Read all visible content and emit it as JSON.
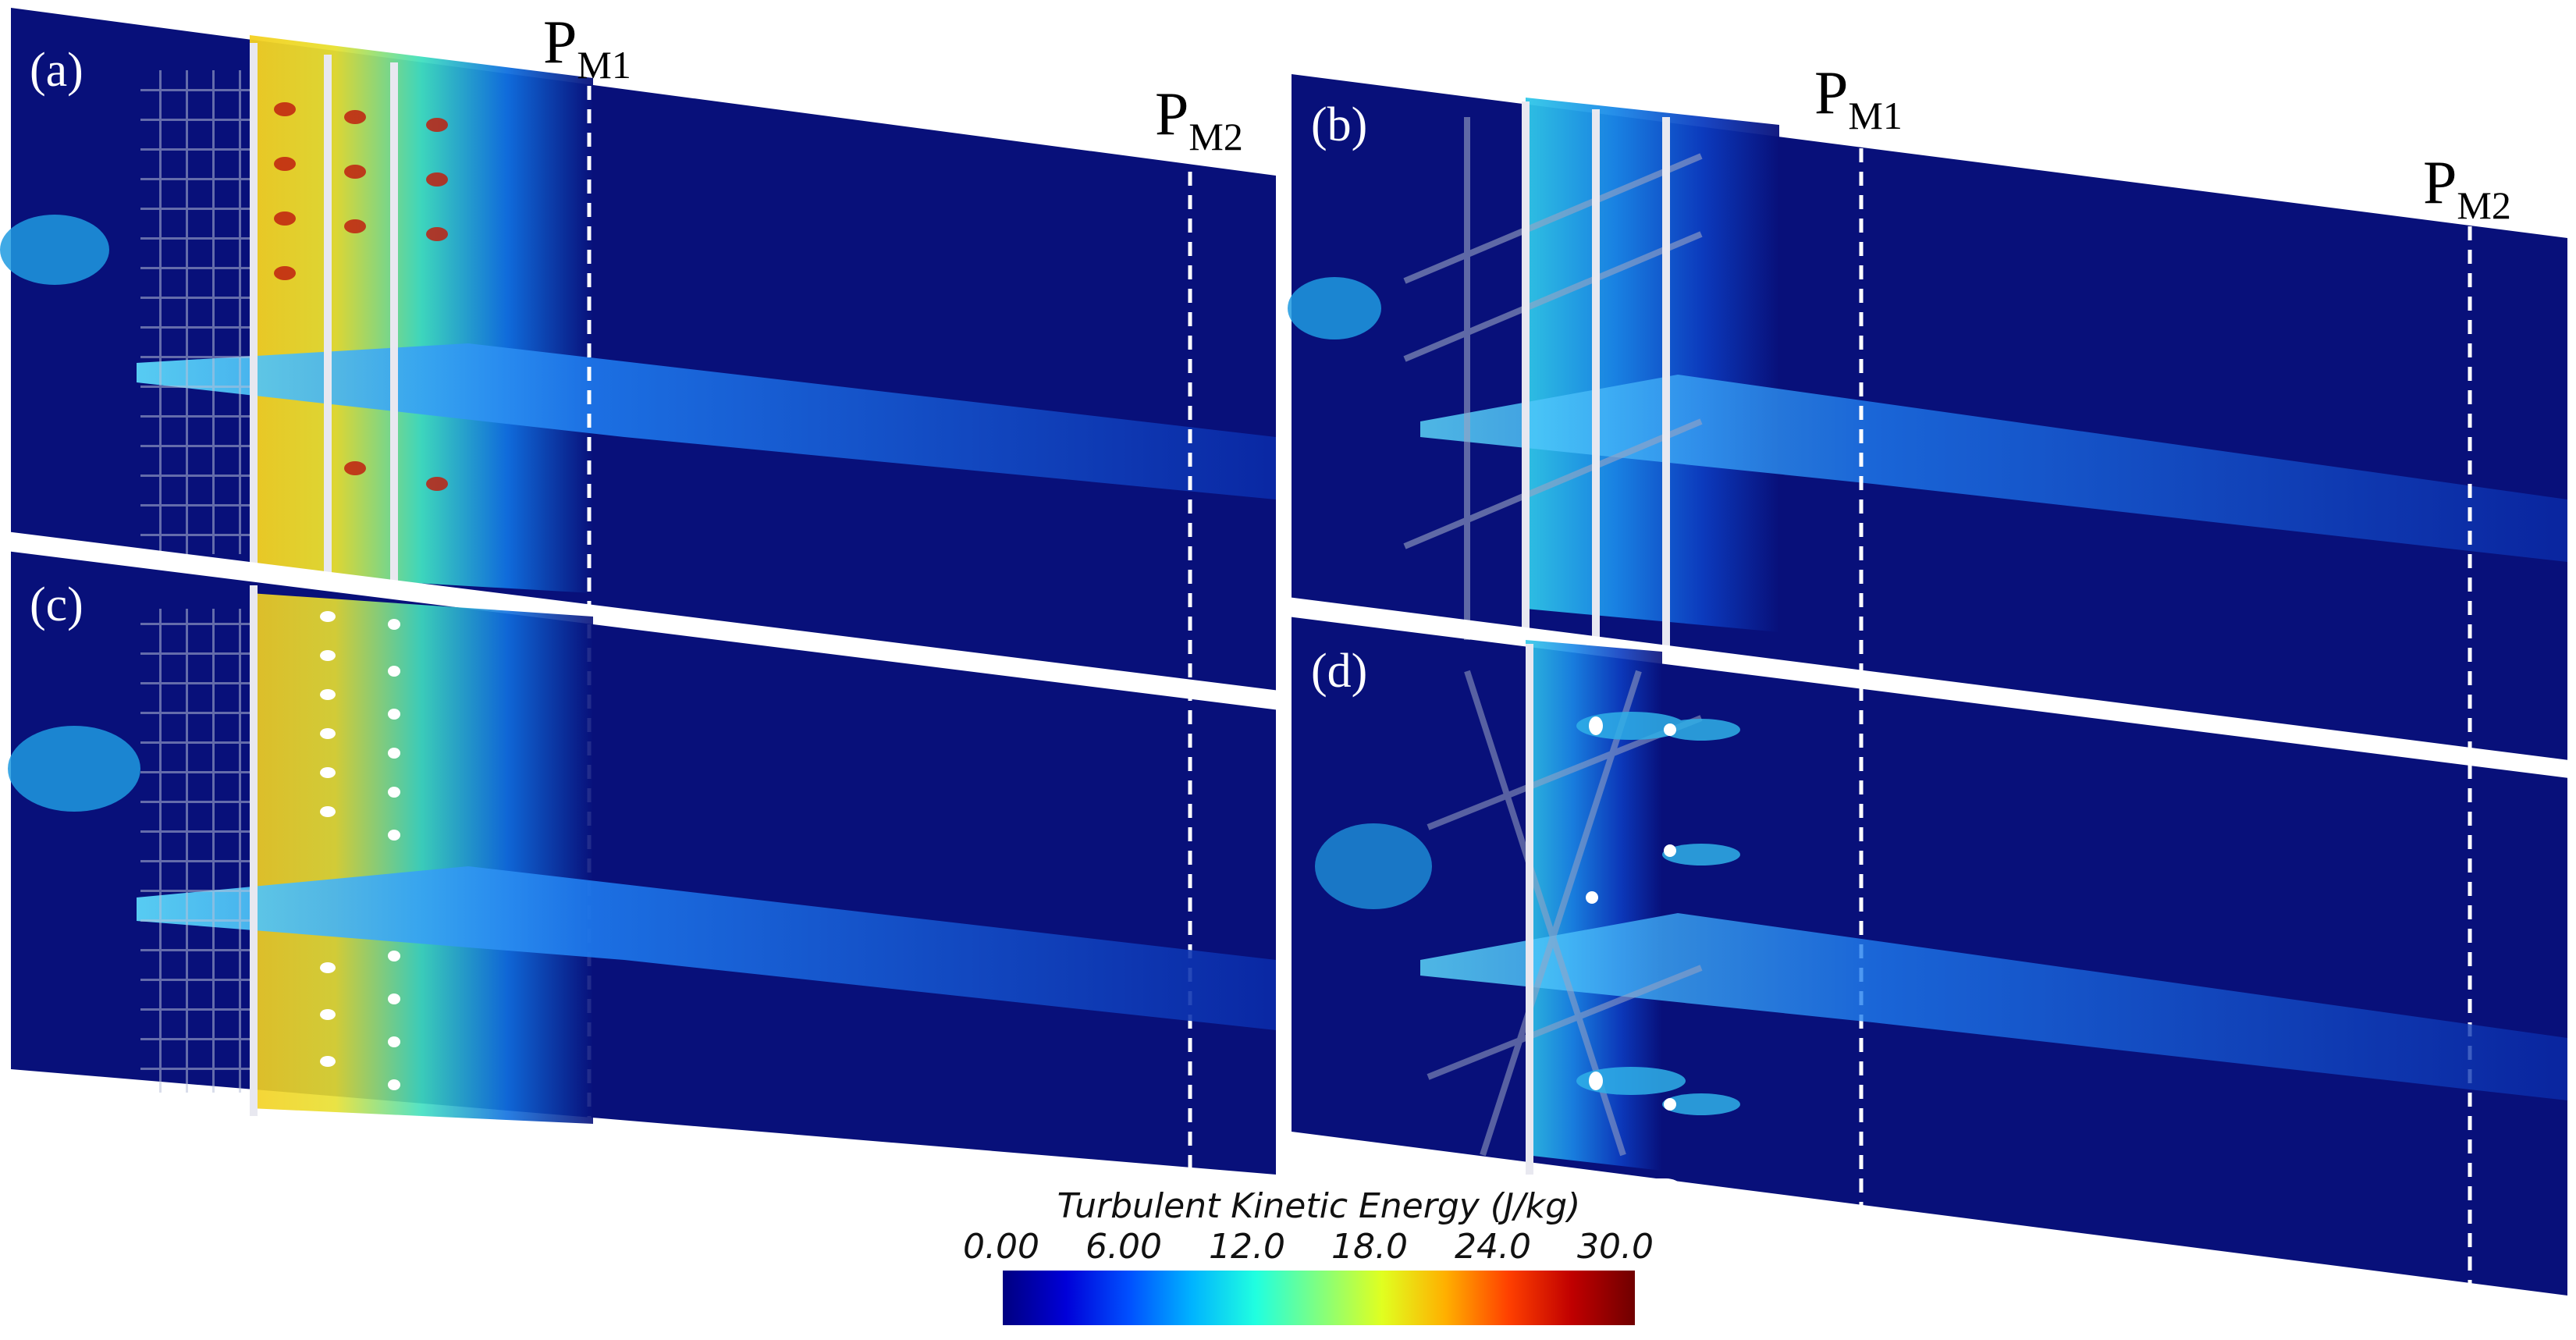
{
  "panels": [
    {
      "id": "a",
      "label": "(a)",
      "pm1": "P",
      "pm1_sub": "M1",
      "pm2": "P",
      "pm2_sub": "M2"
    },
    {
      "id": "b",
      "label": "(b)",
      "pm1": "P",
      "pm1_sub": "M1",
      "pm2": "P",
      "pm2_sub": "M2"
    },
    {
      "id": "c",
      "label": "(c)"
    },
    {
      "id": "d",
      "label": "(d)"
    }
  ],
  "colorbar": {
    "title": "Turbulent Kinetic Energy (J/kg)",
    "ticks": [
      "0.00",
      "6.00",
      "12.0",
      "18.0",
      "24.0",
      "30.0"
    ],
    "range": [
      0,
      30
    ],
    "colors": [
      "#000080",
      "#0000d8",
      "#0050ff",
      "#00b4ff",
      "#20ffe0",
      "#80ff80",
      "#e0ff20",
      "#ffb000",
      "#ff4000",
      "#c00000",
      "#700000"
    ]
  },
  "theme": {
    "background_field": "#08107a",
    "mid_field": "#0a2bb0",
    "hot": "#f5d020"
  }
}
